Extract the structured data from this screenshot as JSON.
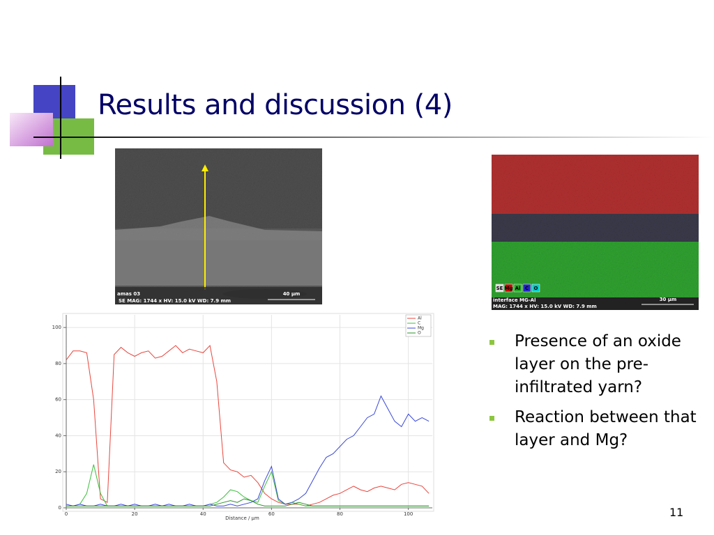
{
  "slide": {
    "title": "Results and discussion (4)",
    "bullets": [
      "Presence of an oxide layer on the pre-infiltrated yarn?",
      "Reaction between that layer and Mg?"
    ],
    "page_number": "11",
    "left_image": {
      "label": "amas 03",
      "scale": "40 µm",
      "info": "SE  MAG: 1744 x  HV: 15.0 kV  WD: 7.9 mm"
    },
    "right_image": {
      "elements": [
        "SE",
        "Mg",
        "Al",
        "C",
        "O"
      ],
      "label": "interface MG-Al",
      "scale": "30 µm",
      "info": "MAG: 1744 x  HV: 15.0 kV  WD: 7.9 mm"
    }
  },
  "chart_data": {
    "type": "line",
    "x_label": "Distance / µm",
    "x": [
      0,
      2,
      4,
      6,
      8,
      10,
      12,
      14,
      16,
      18,
      20,
      22,
      24,
      26,
      28,
      30,
      32,
      34,
      36,
      38,
      40,
      42,
      44,
      46,
      48,
      50,
      52,
      54,
      56,
      58,
      60,
      62,
      64,
      66,
      68,
      70,
      72,
      74,
      76,
      78,
      80,
      82,
      84,
      86,
      88,
      90,
      92,
      94,
      96,
      98,
      100,
      102,
      104,
      106
    ],
    "series": [
      {
        "name": "Al",
        "color": "#e8453c",
        "values": [
          82,
          87,
          87,
          86,
          60,
          5,
          3,
          85,
          89,
          86,
          84,
          86,
          87,
          83,
          84,
          87,
          90,
          86,
          88,
          87,
          86,
          90,
          70,
          25,
          21,
          20,
          17,
          18,
          14,
          8,
          5,
          3,
          2,
          2,
          2,
          1,
          2,
          3,
          5,
          7,
          8,
          10,
          12,
          10,
          9,
          11,
          12,
          11,
          10,
          13,
          14,
          13,
          12,
          8
        ]
      },
      {
        "name": "C",
        "color": "#3cbf3c",
        "values": [
          1,
          1,
          2,
          8,
          24,
          8,
          1,
          1,
          1,
          1,
          1,
          1,
          1,
          1,
          1,
          1,
          1,
          1,
          1,
          1,
          1,
          2,
          3,
          6,
          10,
          9,
          6,
          4,
          3,
          12,
          20,
          4,
          2,
          3,
          2,
          1,
          1,
          1,
          1,
          1,
          1,
          1,
          1,
          1,
          1,
          1,
          1,
          1,
          1,
          1,
          1,
          1,
          1,
          1
        ]
      },
      {
        "name": "Mg",
        "color": "#3a48d6",
        "values": [
          2,
          1,
          2,
          1,
          1,
          2,
          1,
          1,
          2,
          1,
          2,
          1,
          1,
          2,
          1,
          2,
          1,
          1,
          2,
          1,
          1,
          2,
          1,
          1,
          2,
          1,
          2,
          3,
          5,
          15,
          23,
          5,
          2,
          3,
          5,
          8,
          15,
          22,
          28,
          30,
          34,
          38,
          40,
          45,
          50,
          52,
          62,
          55,
          48,
          45,
          52,
          48,
          50,
          48
        ]
      },
      {
        "name": "O",
        "color": "#2a8f2a",
        "values": [
          1,
          1,
          1,
          1,
          1,
          1,
          1,
          1,
          1,
          1,
          1,
          1,
          1,
          1,
          1,
          1,
          1,
          1,
          1,
          1,
          1,
          1,
          2,
          3,
          4,
          3,
          5,
          4,
          2,
          1,
          1,
          1,
          1,
          2,
          3,
          2,
          1,
          1,
          1,
          1,
          1,
          1,
          1,
          1,
          1,
          1,
          1,
          1,
          1,
          1,
          1,
          1,
          1,
          1
        ]
      }
    ],
    "xlim": [
      0,
      107
    ],
    "ylim": [
      0,
      107
    ],
    "xticks": [
      0,
      20,
      40,
      60,
      80,
      100
    ],
    "yticks": [
      0,
      20,
      40,
      60,
      80,
      100
    ],
    "grid": true,
    "legend": "upper-right"
  }
}
